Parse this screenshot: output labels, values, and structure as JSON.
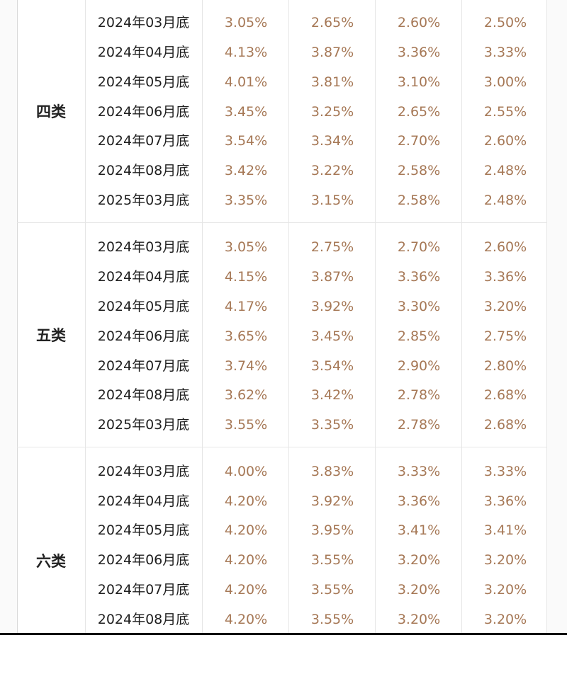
{
  "groups": [
    {
      "category": "四类",
      "rows": [
        {
          "date": "2024年03月底",
          "v1": "3.05%",
          "v2": "2.65%",
          "v3": "2.60%",
          "v4": "2.50%"
        },
        {
          "date": "2024年04月底",
          "v1": "4.13%",
          "v2": "3.87%",
          "v3": "3.36%",
          "v4": "3.33%"
        },
        {
          "date": "2024年05月底",
          "v1": "4.01%",
          "v2": "3.81%",
          "v3": "3.10%",
          "v4": "3.00%"
        },
        {
          "date": "2024年06月底",
          "v1": "3.45%",
          "v2": "3.25%",
          "v3": "2.65%",
          "v4": "2.55%"
        },
        {
          "date": "2024年07月底",
          "v1": "3.54%",
          "v2": "3.34%",
          "v3": "2.70%",
          "v4": "2.60%"
        },
        {
          "date": "2024年08月底",
          "v1": "3.42%",
          "v2": "3.22%",
          "v3": "2.58%",
          "v4": "2.48%"
        },
        {
          "date": "2025年03月底",
          "v1": "3.35%",
          "v2": "3.15%",
          "v3": "2.58%",
          "v4": "2.48%"
        }
      ]
    },
    {
      "category": "五类",
      "rows": [
        {
          "date": "2024年03月底",
          "v1": "3.05%",
          "v2": "2.75%",
          "v3": "2.70%",
          "v4": "2.60%"
        },
        {
          "date": "2024年04月底",
          "v1": "4.15%",
          "v2": "3.87%",
          "v3": "3.36%",
          "v4": "3.36%"
        },
        {
          "date": "2024年05月底",
          "v1": "4.17%",
          "v2": "3.92%",
          "v3": "3.30%",
          "v4": "3.20%"
        },
        {
          "date": "2024年06月底",
          "v1": "3.65%",
          "v2": "3.45%",
          "v3": "2.85%",
          "v4": "2.75%"
        },
        {
          "date": "2024年07月底",
          "v1": "3.74%",
          "v2": "3.54%",
          "v3": "2.90%",
          "v4": "2.80%"
        },
        {
          "date": "2024年08月底",
          "v1": "3.62%",
          "v2": "3.42%",
          "v3": "2.78%",
          "v4": "2.68%"
        },
        {
          "date": "2025年03月底",
          "v1": "3.55%",
          "v2": "3.35%",
          "v3": "2.78%",
          "v4": "2.68%"
        }
      ]
    },
    {
      "category": "六类",
      "rows": [
        {
          "date": "2024年03月底",
          "v1": "4.00%",
          "v2": "3.83%",
          "v3": "3.33%",
          "v4": "3.33%"
        },
        {
          "date": "2024年04月底",
          "v1": "4.20%",
          "v2": "3.92%",
          "v3": "3.36%",
          "v4": "3.36%"
        },
        {
          "date": "2024年05月底",
          "v1": "4.20%",
          "v2": "3.95%",
          "v3": "3.41%",
          "v4": "3.41%"
        },
        {
          "date": "2024年06月底",
          "v1": "4.20%",
          "v2": "3.55%",
          "v3": "3.20%",
          "v4": "3.20%"
        },
        {
          "date": "2024年07月底",
          "v1": "4.20%",
          "v2": "3.55%",
          "v3": "3.20%",
          "v4": "3.20%"
        },
        {
          "date": "2024年08月底",
          "v1": "4.20%",
          "v2": "3.55%",
          "v3": "3.20%",
          "v4": "3.20%"
        }
      ]
    }
  ],
  "colors": {
    "value_text": "#a67856",
    "date_text": "#1f1f1f",
    "grid_line": "#e6e6e6"
  }
}
